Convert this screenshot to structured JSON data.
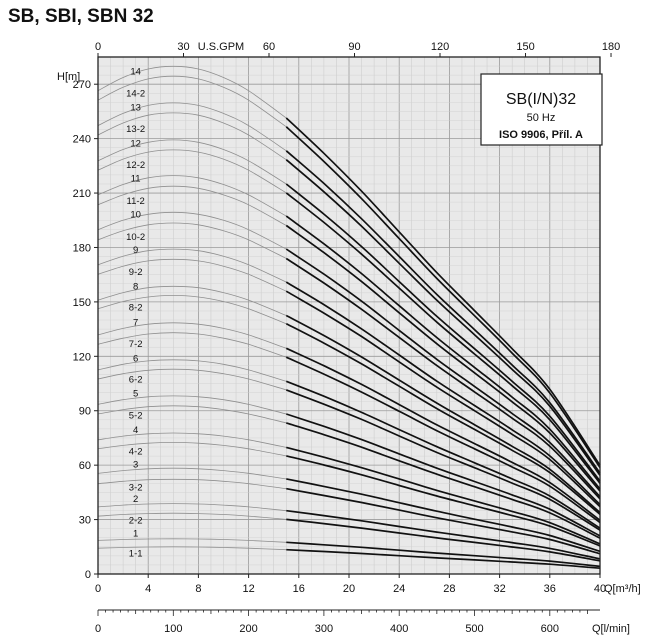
{
  "page": {
    "title": "SB, SBI, SBN 32"
  },
  "chart_data": {
    "type": "line",
    "title": "SB(I/N)32",
    "subtitle": "50 Hz",
    "standard": "ISO 9906, Příl. A",
    "ylabel": "H[m]",
    "xlabel": "Q[m³/h]",
    "xlabel_lmin": "Q[l/min]",
    "xlabel_usgpm": "U.S.GPM",
    "xlim": [
      0,
      40
    ],
    "ylim": [
      0,
      285
    ],
    "grid": true,
    "x_ticks": [
      0,
      4,
      8,
      12,
      16,
      20,
      24,
      28,
      32,
      36,
      40
    ],
    "y_ticks": [
      0,
      30,
      60,
      90,
      120,
      150,
      180,
      210,
      240,
      270
    ],
    "usgpm_ticks": [
      0,
      30,
      60,
      90,
      120,
      150,
      180
    ],
    "lmin_ticks": [
      0,
      100,
      200,
      300,
      400,
      500,
      600
    ],
    "operating_range_start": 15,
    "curve_x": [
      0,
      2,
      4,
      6,
      8,
      10,
      12,
      15,
      18,
      21,
      24,
      27,
      30,
      33,
      36,
      40
    ],
    "curve_unit_head": [
      17.8,
      18.3,
      18.6,
      18.7,
      18.6,
      18.3,
      17.8,
      16.8,
      15.5,
      14.1,
      12.6,
      11.1,
      9.7,
      8.3,
      6.8,
      4.0
    ],
    "stage_labels": [
      "1-1",
      "1",
      "2-2",
      "2",
      "3-2",
      "3",
      "4-2",
      "4",
      "5-2",
      "5",
      "6-2",
      "6",
      "7-2",
      "7",
      "8-2",
      "8",
      "9-2",
      "9",
      "10-2",
      "10",
      "11-2",
      "11",
      "12-2",
      "12",
      "13-2",
      "13",
      "14-2",
      "14"
    ],
    "series": [
      {
        "name": "1-1",
        "values": [
          14.2,
          14.6,
          14.9,
          15.0,
          14.9,
          14.6,
          14.2,
          13.4,
          12.4,
          11.3,
          10.1,
          8.9,
          7.8,
          6.6,
          5.4,
          3.2
        ]
      },
      {
        "name": "1",
        "values": [
          18.5,
          19.0,
          19.3,
          19.4,
          19.3,
          19.0,
          18.5,
          17.5,
          16.1,
          14.7,
          13.1,
          11.5,
          10.1,
          8.6,
          7.1,
          4.2
        ]
      },
      {
        "name": "2-2",
        "values": [
          31.9,
          32.8,
          33.3,
          33.5,
          33.3,
          32.8,
          31.9,
          30.1,
          27.8,
          25.3,
          22.6,
          19.9,
          17.4,
          14.9,
          12.2,
          7.2
        ]
      },
      {
        "name": "2",
        "values": [
          37.0,
          38.0,
          38.6,
          38.8,
          38.6,
          38.0,
          37.0,
          34.9,
          32.2,
          29.3,
          26.2,
          23.1,
          20.2,
          17.3,
          14.1,
          8.3
        ]
      },
      {
        "name": "3-2",
        "values": [
          49.8,
          51.1,
          52.0,
          52.2,
          52.0,
          51.1,
          49.8,
          47.0,
          43.3,
          39.4,
          35.2,
          31.0,
          27.1,
          23.2,
          19.0,
          11.2
        ]
      },
      {
        "name": "3",
        "values": [
          55.5,
          57.0,
          58.0,
          58.3,
          58.0,
          57.0,
          55.5,
          52.4,
          48.3,
          44.0,
          39.3,
          34.6,
          30.2,
          25.9,
          21.2,
          12.5
        ]
      },
      {
        "name": "4-2",
        "values": [
          69.0,
          70.9,
          72.1,
          72.5,
          72.1,
          70.9,
          69.0,
          65.1,
          60.1,
          54.7,
          48.8,
          43.0,
          37.6,
          32.2,
          26.4,
          15.5
        ]
      },
      {
        "name": "4",
        "values": [
          74.0,
          76.0,
          77.3,
          77.7,
          77.3,
          76.0,
          74.0,
          69.8,
          64.4,
          58.6,
          52.4,
          46.1,
          40.3,
          34.5,
          28.3,
          16.6
        ]
      },
      {
        "name": "5-2",
        "values": [
          88.2,
          90.6,
          92.2,
          92.7,
          92.2,
          90.6,
          88.2,
          83.3,
          76.8,
          69.9,
          62.4,
          55.0,
          48.1,
          41.1,
          33.7,
          19.8
        ]
      },
      {
        "name": "5",
        "values": [
          93.5,
          96.1,
          97.7,
          98.2,
          97.7,
          96.1,
          93.5,
          88.2,
          81.4,
          74.1,
          66.2,
          58.3,
          51.0,
          43.6,
          35.7,
          21.0
        ]
      },
      {
        "name": "6-2",
        "values": [
          107.5,
          110.4,
          112.3,
          112.9,
          112.3,
          110.4,
          107.5,
          101.5,
          93.6,
          85.2,
          76.1,
          67.0,
          58.6,
          50.1,
          41.1,
          24.2
        ]
      },
      {
        "name": "6",
        "values": [
          112.5,
          115.6,
          117.5,
          118.1,
          117.5,
          115.6,
          112.5,
          106.2,
          98.0,
          89.1,
          79.6,
          70.2,
          61.3,
          52.4,
          43.0,
          25.3
        ]
      },
      {
        "name": "7-2",
        "values": [
          126.6,
          130.0,
          132.3,
          133.0,
          132.3,
          130.0,
          126.6,
          119.5,
          110.2,
          100.3,
          89.7,
          79.0,
          69.0,
          59.0,
          48.4,
          28.4
        ]
      },
      {
        "name": "7",
        "values": [
          131.8,
          135.4,
          137.7,
          138.5,
          137.7,
          135.4,
          131.8,
          124.4,
          114.8,
          104.5,
          93.4,
          82.2,
          71.9,
          61.5,
          50.4,
          29.6
        ]
      },
      {
        "name": "8-2",
        "values": [
          146.2,
          150.2,
          152.7,
          153.6,
          152.7,
          150.2,
          146.2,
          138.0,
          127.3,
          115.8,
          103.5,
          91.2,
          79.7,
          68.2,
          55.9,
          32.9
        ]
      },
      {
        "name": "8",
        "values": [
          151.0,
          155.1,
          157.8,
          158.6,
          157.8,
          155.1,
          151.0,
          142.5,
          131.5,
          119.6,
          106.9,
          94.2,
          82.3,
          70.4,
          57.7,
          33.9
        ]
      },
      {
        "name": "9-2",
        "values": [
          165.2,
          169.7,
          172.6,
          173.5,
          172.6,
          169.7,
          165.2,
          155.9,
          143.8,
          130.9,
          116.9,
          103.0,
          90.0,
          77.0,
          63.1,
          37.1
        ]
      },
      {
        "name": "9",
        "values": [
          170.5,
          175.2,
          178.2,
          179.1,
          178.2,
          175.2,
          170.5,
          160.9,
          148.5,
          135.1,
          120.7,
          106.3,
          92.9,
          79.5,
          65.1,
          38.3
        ]
      },
      {
        "name": "10-2",
        "values": [
          184.2,
          189.2,
          192.5,
          193.5,
          192.5,
          189.2,
          184.2,
          173.9,
          160.4,
          145.9,
          130.4,
          114.9,
          100.4,
          85.9,
          70.4,
          41.4
        ]
      },
      {
        "name": "10",
        "values": [
          189.8,
          195.0,
          198.3,
          199.4,
          198.3,
          195.0,
          189.8,
          179.1,
          165.3,
          150.4,
          134.3,
          118.3,
          103.4,
          88.5,
          72.5,
          42.6
        ]
      },
      {
        "name": "11-2",
        "values": [
          203.5,
          209.0,
          212.6,
          213.8,
          212.6,
          209.0,
          203.5,
          192.1,
          177.2,
          161.2,
          144.0,
          126.9,
          110.9,
          94.9,
          77.7,
          45.7
        ]
      },
      {
        "name": "11",
        "values": [
          209.0,
          214.7,
          218.4,
          219.6,
          218.4,
          214.7,
          209.0,
          197.3,
          182.0,
          165.6,
          147.9,
          130.3,
          113.9,
          97.5,
          79.8,
          46.9
        ]
      },
      {
        "name": "12-2",
        "values": [
          222.6,
          228.7,
          232.6,
          233.8,
          232.6,
          228.7,
          222.6,
          210.1,
          193.8,
          176.3,
          157.6,
          138.8,
          121.3,
          103.8,
          85.0,
          50.0
        ]
      },
      {
        "name": "12",
        "values": [
          227.8,
          234.0,
          238.0,
          239.3,
          238.0,
          234.0,
          227.8,
          215.0,
          198.4,
          180.5,
          161.2,
          142.0,
          124.2,
          106.2,
          87.0,
          51.2
        ]
      },
      {
        "name": "13-2",
        "values": [
          242.0,
          248.6,
          252.9,
          254.2,
          252.9,
          248.6,
          242.0,
          228.4,
          210.7,
          191.7,
          171.3,
          150.9,
          131.9,
          112.8,
          92.5,
          54.4
        ]
      },
      {
        "name": "13",
        "values": [
          247.2,
          253.9,
          258.3,
          259.7,
          258.3,
          253.9,
          247.2,
          233.3,
          215.3,
          195.8,
          175.0,
          154.1,
          134.7,
          115.2,
          94.4,
          55.6
        ]
      },
      {
        "name": "14-2",
        "values": [
          261.2,
          268.3,
          272.9,
          274.4,
          272.9,
          268.3,
          261.2,
          246.5,
          227.4,
          206.9,
          184.9,
          162.9,
          142.4,
          121.8,
          99.8,
          58.7
        ]
      },
      {
        "name": "14",
        "values": [
          266.4,
          273.7,
          278.4,
          279.9,
          278.4,
          273.7,
          266.4,
          251.4,
          231.9,
          211.0,
          188.6,
          166.1,
          145.2,
          124.2,
          101.8,
          59.9
        ]
      }
    ]
  }
}
